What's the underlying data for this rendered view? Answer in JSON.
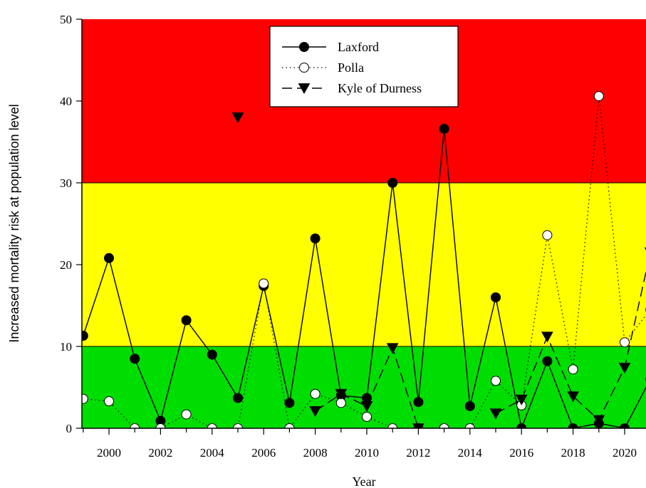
{
  "chart_data": {
    "type": "line",
    "xlabel": "Year",
    "ylabel": "Increased mortality risk at population level",
    "xlim": [
      1999,
      2021
    ],
    "ylim": [
      0,
      50
    ],
    "x_ticks": [
      2000,
      2002,
      2004,
      2006,
      2008,
      2010,
      2012,
      2014,
      2016,
      2018,
      2020
    ],
    "y_ticks": [
      0,
      10,
      20,
      30,
      40,
      50
    ],
    "bands": [
      {
        "from": 0,
        "to": 10,
        "color": "#00dd00"
      },
      {
        "from": 10,
        "to": 30,
        "color": "#ffff00"
      },
      {
        "from": 30,
        "to": 50,
        "color": "#ff0000"
      }
    ],
    "legend": {
      "position": "top-center"
    },
    "series": [
      {
        "name": "Laxford",
        "style": "solid",
        "marker": "filled-circle",
        "points": [
          [
            1999,
            11.3
          ],
          [
            2000,
            20.8
          ],
          [
            2001,
            8.5
          ],
          [
            2002,
            0.9
          ],
          [
            2003,
            13.2
          ],
          [
            2004,
            9.0
          ],
          [
            2005,
            3.7
          ],
          [
            2006,
            17.4
          ],
          [
            2007,
            3.1
          ],
          [
            2008,
            23.2
          ],
          [
            2009,
            4.0
          ],
          [
            2010,
            3.7
          ],
          [
            2011,
            30.0
          ],
          [
            2012,
            3.2
          ],
          [
            2013,
            36.6
          ],
          [
            2014,
            2.7
          ],
          [
            2015,
            16.0
          ],
          [
            2016,
            0.0
          ],
          [
            2017,
            8.2
          ],
          [
            2018,
            0.0
          ],
          [
            2019,
            0.6
          ],
          [
            2020,
            0.0
          ],
          [
            2021,
            6.0
          ]
        ]
      },
      {
        "name": "Polla",
        "style": "dotted",
        "marker": "open-circle",
        "points": [
          [
            1999,
            3.6
          ],
          [
            2000,
            3.3
          ],
          [
            2001,
            0.0
          ],
          [
            2002,
            0.0
          ],
          [
            2003,
            1.7
          ],
          [
            2004,
            0.0
          ],
          [
            2005,
            0.0
          ],
          [
            2006,
            17.7
          ],
          [
            2007,
            0.0
          ],
          [
            2008,
            4.2
          ],
          [
            2009,
            3.1
          ],
          [
            2010,
            1.4
          ],
          [
            2011,
            0.0
          ],
          [
            2012,
            0.0
          ],
          [
            2013,
            0.0
          ],
          [
            2014,
            0.0
          ],
          [
            2015,
            5.8
          ],
          [
            2016,
            2.8
          ],
          [
            2017,
            23.6
          ],
          [
            2018,
            7.2
          ],
          [
            2019,
            40.6
          ],
          [
            2020,
            10.5
          ],
          [
            2021,
            14.5
          ]
        ]
      },
      {
        "name": "Kyle of Durness",
        "style": "dashed",
        "marker": "filled-triangle-down",
        "points": [
          [
            2005,
            38.0
          ],
          [
            2008,
            2.1
          ],
          [
            2009,
            4.2
          ],
          [
            2010,
            2.7
          ],
          [
            2011,
            9.8
          ],
          [
            2012,
            0.0
          ],
          [
            2015,
            1.8
          ],
          [
            2016,
            3.5
          ],
          [
            2017,
            11.2
          ],
          [
            2018,
            3.9
          ],
          [
            2019,
            1.0
          ],
          [
            2020,
            7.4
          ],
          [
            2021,
            21.5
          ]
        ],
        "segments": [
          [
            [
              2008,
              2.1
            ],
            [
              2009,
              4.2
            ],
            [
              2010,
              2.7
            ],
            [
              2011,
              9.8
            ],
            [
              2012,
              0.0
            ]
          ],
          [
            [
              2015,
              1.8
            ],
            [
              2016,
              3.5
            ],
            [
              2017,
              11.2
            ],
            [
              2018,
              3.9
            ],
            [
              2019,
              1.0
            ],
            [
              2020,
              7.4
            ],
            [
              2021,
              21.5
            ]
          ]
        ]
      }
    ]
  }
}
